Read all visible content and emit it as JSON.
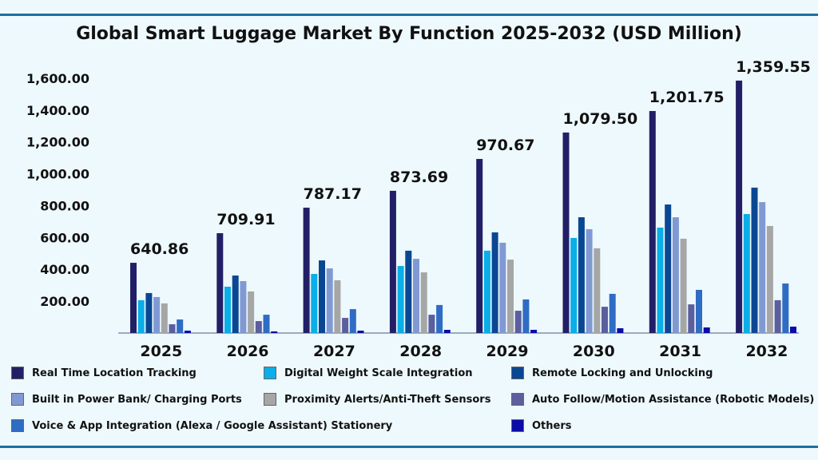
{
  "chart_data": {
    "type": "bar",
    "title": "Global Smart Luggage Market By Function 2025-2032 (USD Million)",
    "xlabel": "",
    "ylabel": "",
    "ylim": [
      0,
      1700
    ],
    "yticks": [
      200,
      400,
      600,
      800,
      1000,
      1200,
      1400,
      1600
    ],
    "ytick_labels": [
      "200.00",
      "400.00",
      "600.00",
      "800.00",
      "1,000.00",
      "1,200.00",
      "1,400.00",
      "1,600.00"
    ],
    "grid": false,
    "legend_placement": "bottom",
    "categories": [
      "2025",
      "2026",
      "2027",
      "2028",
      "2029",
      "2030",
      "2031",
      "2032"
    ],
    "annotations": [
      "640.86",
      "709.91",
      "787.17",
      "873.69",
      "970.67",
      "1,079.50",
      "1,201.75",
      "1,359.55"
    ],
    "series": [
      {
        "name": "Real Time Location Tracking",
        "color": "#221f66",
        "values": [
          441,
          627,
          787,
          893,
          1093,
          1259,
          1394,
          1585
        ]
      },
      {
        "name": "Digital Weight Scale Integration",
        "color": "#0aaee8",
        "values": [
          206,
          291,
          371,
          421,
          517,
          597,
          662,
          747
        ]
      },
      {
        "name": "Remote Locking and Unlocking",
        "color": "#0a4793",
        "values": [
          251,
          361,
          456,
          517,
          632,
          727,
          807,
          913
        ]
      },
      {
        "name": "Built in Power Bank/ Charging Ports",
        "color": "#8199d3",
        "values": [
          226,
          326,
          406,
          466,
          567,
          652,
          727,
          822
        ]
      },
      {
        "name": "Proximity Alerts/Anti-Theft Sensors",
        "color": "#a6a6a6",
        "values": [
          186,
          261,
          331,
          381,
          461,
          532,
          592,
          672
        ]
      },
      {
        "name": "Auto Follow/Motion Assistance (Robotic Models)",
        "color": "#5b5f9e",
        "values": [
          55,
          75,
          95,
          115,
          140,
          165,
          180,
          206
        ]
      },
      {
        "name": "Voice & App Integration (Alexa / Google Assistant) Stationery",
        "color": "#2f6cc4",
        "values": [
          85,
          115,
          150,
          176,
          211,
          246,
          271,
          311
        ]
      },
      {
        "name": "Others",
        "color": "#0b0ba8",
        "values": [
          15,
          10,
          15,
          20,
          20,
          30,
          35,
          40
        ]
      }
    ]
  }
}
